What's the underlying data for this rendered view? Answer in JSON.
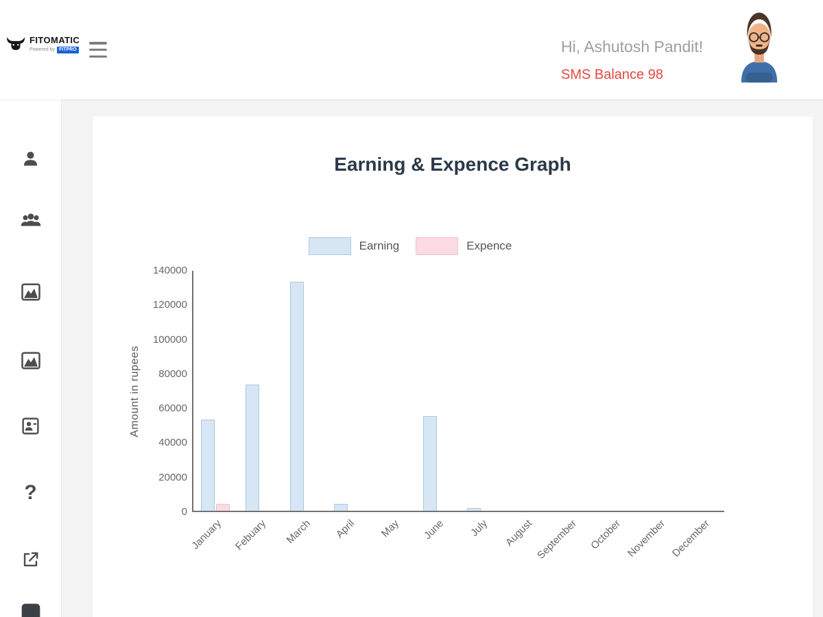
{
  "header": {
    "logo_title": "FITOMATIC",
    "logo_sub_prefix": "Powered by",
    "logo_sub_brand": "FITPRO",
    "greeting": "Hi, Ashutosh Pandit!",
    "sms_balance": "SMS Balance 98",
    "colors": {
      "greeting_text": "#9e9e9e",
      "sms_text": "#e5483f"
    }
  },
  "sidebar": {
    "help_glyph": "?",
    "items": [
      {
        "icon": "user-icon"
      },
      {
        "icon": "users-icon"
      },
      {
        "icon": "area-chart-icon"
      },
      {
        "icon": "area-chart-icon"
      },
      {
        "icon": "contact-card-icon"
      },
      {
        "icon": "question-mark-icon"
      },
      {
        "icon": "external-link-icon"
      },
      {
        "icon": "bottom-partial-icon"
      }
    ]
  },
  "chart_data": {
    "type": "bar",
    "title": "Earning & Expence Graph",
    "xlabel": "",
    "ylabel": "Amount in rupees",
    "ylim": [
      0,
      140000
    ],
    "yticks": [
      0,
      20000,
      40000,
      60000,
      80000,
      100000,
      120000,
      140000
    ],
    "grid": false,
    "legend_position": "top",
    "categories": [
      "January",
      "Febuary",
      "March",
      "April",
      "May",
      "June",
      "July",
      "August",
      "September",
      "October",
      "November",
      "December"
    ],
    "series": [
      {
        "name": "Earning",
        "fill": "#d7e6f4",
        "border": "#aac9e0",
        "values": [
          53000,
          73000,
          133000,
          4000,
          0,
          55000,
          1500,
          0,
          0,
          0,
          0,
          0
        ]
      },
      {
        "name": "Expence",
        "fill": "#fcdbe3",
        "border": "#f3bfcb",
        "values": [
          4000,
          0,
          0,
          0,
          0,
          0,
          0,
          0,
          0,
          0,
          0,
          0
        ]
      }
    ]
  }
}
